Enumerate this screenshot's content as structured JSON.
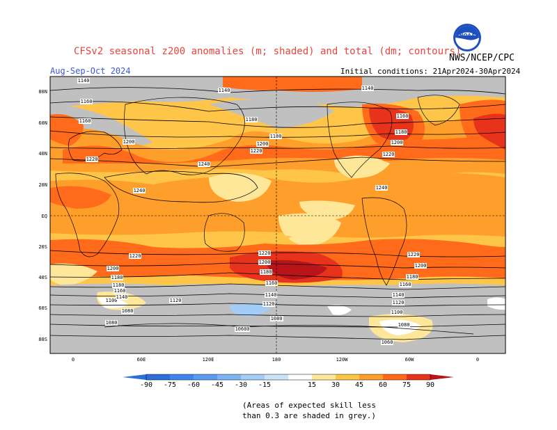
{
  "header": {
    "title": "CFSv2 seasonal z200 anomalies (m; shaded) and total (dm; contours)",
    "period": "Aug-Sep-Oct 2024",
    "initial_conditions": "Initial conditions: 21Apr2024-30Apr2024",
    "agency": "NWS/NCEP/CPC",
    "logo_text": "NOAA"
  },
  "map": {
    "lat_ticks": [
      "80N",
      "60N",
      "40N",
      "20N",
      "EQ",
      "20S",
      "40S",
      "60S",
      "80S"
    ],
    "lon_ticks": [
      "0",
      "60E",
      "120E",
      "180",
      "120W",
      "60W",
      "0"
    ],
    "contour_labels": [
      "1140",
      "1140",
      "1140",
      "1160",
      "1160",
      "1160",
      "1180",
      "1180",
      "1180",
      "1200",
      "1200",
      "1200",
      "1220",
      "1220",
      "1220",
      "1240",
      "1240",
      "1240",
      "1220",
      "1200",
      "1180",
      "1220",
      "1200",
      "1180",
      "1160",
      "1140",
      "1120",
      "1100",
      "1080",
      "1060",
      "1220",
      "1200",
      "1180",
      "1160",
      "1140",
      "1120",
      "1100",
      "1080",
      "1060",
      "1180",
      "1160",
      "1140",
      "1120",
      "1100",
      "1080",
      "1060",
      "1080",
      "1060"
    ],
    "legend_values": [
      "-90",
      "-75",
      "-60",
      "-45",
      "-30",
      "-15",
      "15",
      "30",
      "45",
      "60",
      "75",
      "90"
    ],
    "legend_colors": [
      "#2c6fd8",
      "#3d85ea",
      "#5a9cf0",
      "#7cb4f3",
      "#a3cdf6",
      "#c9e3f9",
      "#ffe79a",
      "#ffc548",
      "#ff9f2b",
      "#ff6b1a",
      "#e8331c",
      "#b8141a"
    ],
    "skill_mask_color": "#c0c0c0"
  },
  "footer": {
    "note_line1": "(Areas of expected skill less",
    "note_line2": "than 0.3 are shaded in grey.)"
  }
}
